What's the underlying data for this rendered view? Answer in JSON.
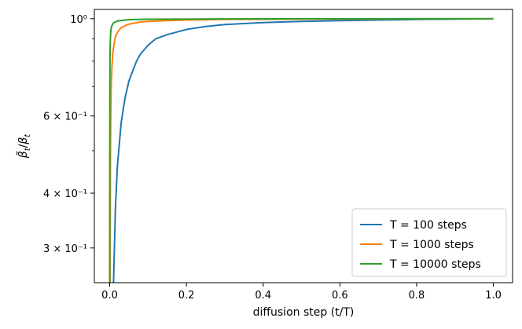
{
  "chart_data": {
    "type": "line",
    "title": "",
    "xlabel": "diffusion step (t/T)",
    "ylabel": "β̃_t/β_t",
    "xlim": [
      -0.04,
      1.05
    ],
    "ylim": [
      0.25,
      1.05
    ],
    "yscale": "log",
    "grid": false,
    "legend_position": "lower-right",
    "x_ticks": [
      {
        "value": 0.0,
        "label": "0.0"
      },
      {
        "value": 0.2,
        "label": "0.2"
      },
      {
        "value": 0.4,
        "label": "0.4"
      },
      {
        "value": 0.6,
        "label": "0.6"
      },
      {
        "value": 0.8,
        "label": "0.8"
      },
      {
        "value": 1.0,
        "label": "1.0"
      }
    ],
    "y_ticks": [
      {
        "value": 1.0,
        "label": "10⁰"
      },
      {
        "value": 0.6,
        "label": "6 × 10⁻¹"
      },
      {
        "value": 0.4,
        "label": "4 × 10⁻¹"
      },
      {
        "value": 0.3,
        "label": "3 × 10⁻¹"
      }
    ],
    "y_minor_ticks": [
      0.5,
      0.7,
      0.8,
      0.9
    ],
    "series": [
      {
        "name": "T = 100 steps",
        "color": "#1f77b4",
        "x": [
          0.01,
          0.015,
          0.02,
          0.03,
          0.04,
          0.05,
          0.06,
          0.07,
          0.08,
          0.1,
          0.12,
          0.15,
          0.2,
          0.25,
          0.3,
          0.4,
          0.5,
          0.6,
          0.7,
          0.8,
          0.9,
          1.0
        ],
        "y": [
          0.25,
          0.37,
          0.46,
          0.58,
          0.66,
          0.72,
          0.76,
          0.8,
          0.83,
          0.87,
          0.9,
          0.92,
          0.945,
          0.96,
          0.97,
          0.98,
          0.986,
          0.99,
          0.993,
          0.996,
          0.998,
          1.0
        ]
      },
      {
        "name": "T = 1000 steps",
        "color": "#ff7f0e",
        "x": [
          0.001,
          0.002,
          0.003,
          0.004,
          0.006,
          0.008,
          0.01,
          0.015,
          0.02,
          0.03,
          0.05,
          0.08,
          0.1,
          0.15,
          0.2,
          0.3,
          0.5,
          0.7,
          1.0
        ],
        "y": [
          0.25,
          0.5,
          0.62,
          0.7,
          0.78,
          0.83,
          0.86,
          0.91,
          0.93,
          0.955,
          0.972,
          0.983,
          0.986,
          0.99,
          0.993,
          0.996,
          0.998,
          0.999,
          1.0
        ]
      },
      {
        "name": "T = 10000 steps",
        "color": "#2ca02c",
        "x": [
          0.0001,
          0.0003,
          0.0006,
          0.001,
          0.0015,
          0.002,
          0.003,
          0.005,
          0.008,
          0.01,
          0.02,
          0.05,
          0.1,
          0.3,
          0.6,
          1.0
        ],
        "y": [
          0.25,
          0.6,
          0.75,
          0.84,
          0.88,
          0.91,
          0.94,
          0.96,
          0.972,
          0.978,
          0.988,
          0.995,
          0.997,
          0.999,
          1.0,
          1.0
        ]
      }
    ]
  }
}
